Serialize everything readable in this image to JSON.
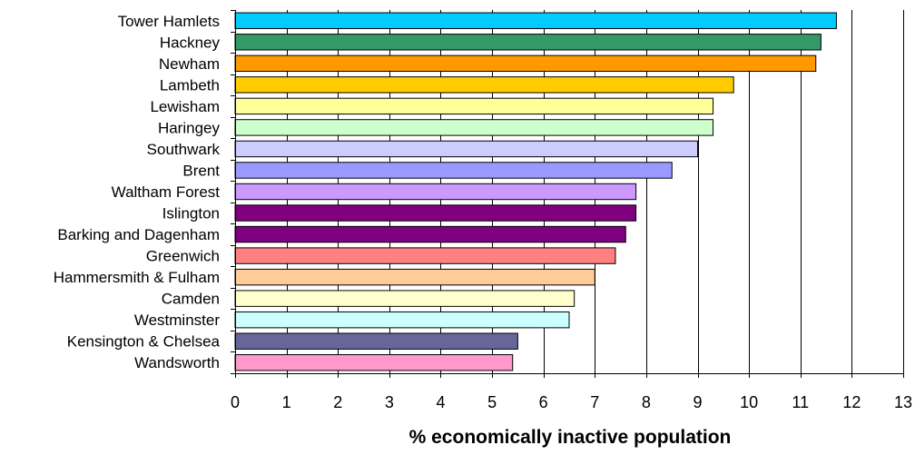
{
  "chart_data": {
    "type": "bar",
    "orientation": "horizontal",
    "title": "",
    "xlabel": "% economically inactive population",
    "ylabel": "",
    "xlim": [
      0,
      13
    ],
    "xticks": [
      0,
      1,
      2,
      3,
      4,
      5,
      6,
      7,
      8,
      9,
      10,
      11,
      12,
      13
    ],
    "grid": "vertical",
    "categories": [
      "Tower Hamlets",
      "Hackney",
      "Newham",
      "Lambeth",
      "Lewisham",
      "Haringey",
      "Southwark",
      "Brent",
      "Waltham Forest",
      "Islington",
      "Barking and Dagenham",
      "Greenwich",
      "Hammersmith & Fulham",
      "Camden",
      "Westminster",
      "Kensington & Chelsea",
      "Wandsworth"
    ],
    "values": [
      11.7,
      11.4,
      11.3,
      9.7,
      9.3,
      9.3,
      9.0,
      8.5,
      7.8,
      7.8,
      7.6,
      7.4,
      7.0,
      6.6,
      6.5,
      5.5,
      5.4
    ],
    "colors": [
      "#00CCFF",
      "#339966",
      "#FF9900",
      "#FFCC00",
      "#FFFF99",
      "#CCFFCC",
      "#CCCCFF",
      "#9999FF",
      "#CC99FF",
      "#800080",
      "#800080",
      "#FF8080",
      "#FFCC99",
      "#FFFFCC",
      "#CCFFFF",
      "#666699",
      "#FF99CC"
    ]
  }
}
